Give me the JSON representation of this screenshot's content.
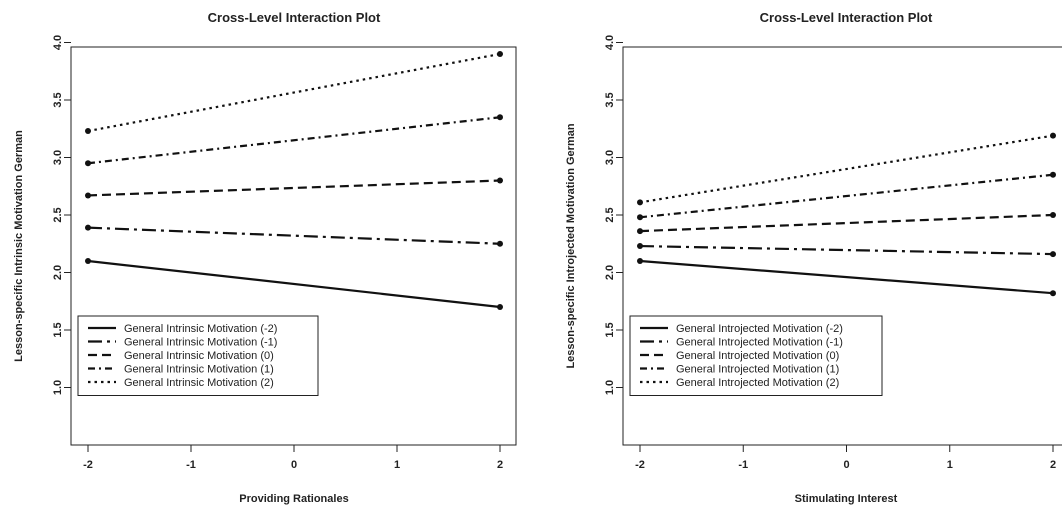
{
  "chart_data": [
    {
      "type": "line",
      "title": "Cross-Level Interaction Plot",
      "xlabel": "Providing Rationales",
      "ylabel": "Lesson-specific Intrinsic Motivation German",
      "x": [
        -2,
        2
      ],
      "xticks": [
        "-2",
        "-1",
        "0",
        "1",
        "2"
      ],
      "yticks": [
        "1.0",
        "1.5",
        "2.0",
        "2.5",
        "3.0",
        "3.5",
        "4.0"
      ],
      "xlim": [
        -2,
        2
      ],
      "ylim": [
        1,
        4
      ],
      "legend_position": "bottom-left",
      "grid": false,
      "series": [
        {
          "name": "General Intrinsic Motivation (-2)",
          "dash": "solid",
          "values": [
            2.1,
            1.7
          ]
        },
        {
          "name": "General Intrinsic Motivation (-1)",
          "dash": "longdash",
          "values": [
            2.39,
            2.25
          ]
        },
        {
          "name": "General Intrinsic Motivation (0)",
          "dash": "dashed",
          "values": [
            2.67,
            2.8
          ]
        },
        {
          "name": "General Intrinsic Motivation (1)",
          "dash": "dashdot",
          "values": [
            2.95,
            3.35
          ]
        },
        {
          "name": "General Intrinsic Motivation (2)",
          "dash": "dotted",
          "values": [
            3.23,
            3.9
          ]
        }
      ]
    },
    {
      "type": "line",
      "title": "Cross-Level Interaction Plot",
      "xlabel": "Stimulating Interest",
      "ylabel": "Lesson-specific Introjected Motivation German",
      "x": [
        -2,
        2
      ],
      "xticks": [
        "-2",
        "-1",
        "0",
        "1",
        "2"
      ],
      "yticks": [
        "1.0",
        "1.5",
        "2.0",
        "2.5",
        "3.0",
        "3.5",
        "4.0"
      ],
      "xlim": [
        -2,
        2
      ],
      "ylim": [
        1,
        4
      ],
      "legend_position": "bottom-left",
      "grid": false,
      "series": [
        {
          "name": "General Introjected Motivation (-2)",
          "dash": "solid",
          "values": [
            2.1,
            1.82
          ]
        },
        {
          "name": "General Introjected Motivation (-1)",
          "dash": "longdash",
          "values": [
            2.23,
            2.16
          ]
        },
        {
          "name": "General Introjected Motivation (0)",
          "dash": "dashed",
          "values": [
            2.36,
            2.5
          ]
        },
        {
          "name": "General Introjected Motivation (1)",
          "dash": "dashdot",
          "values": [
            2.48,
            2.85
          ]
        },
        {
          "name": "General Introjected Motivation (2)",
          "dash": "dotted",
          "values": [
            2.61,
            3.19
          ]
        }
      ]
    }
  ]
}
